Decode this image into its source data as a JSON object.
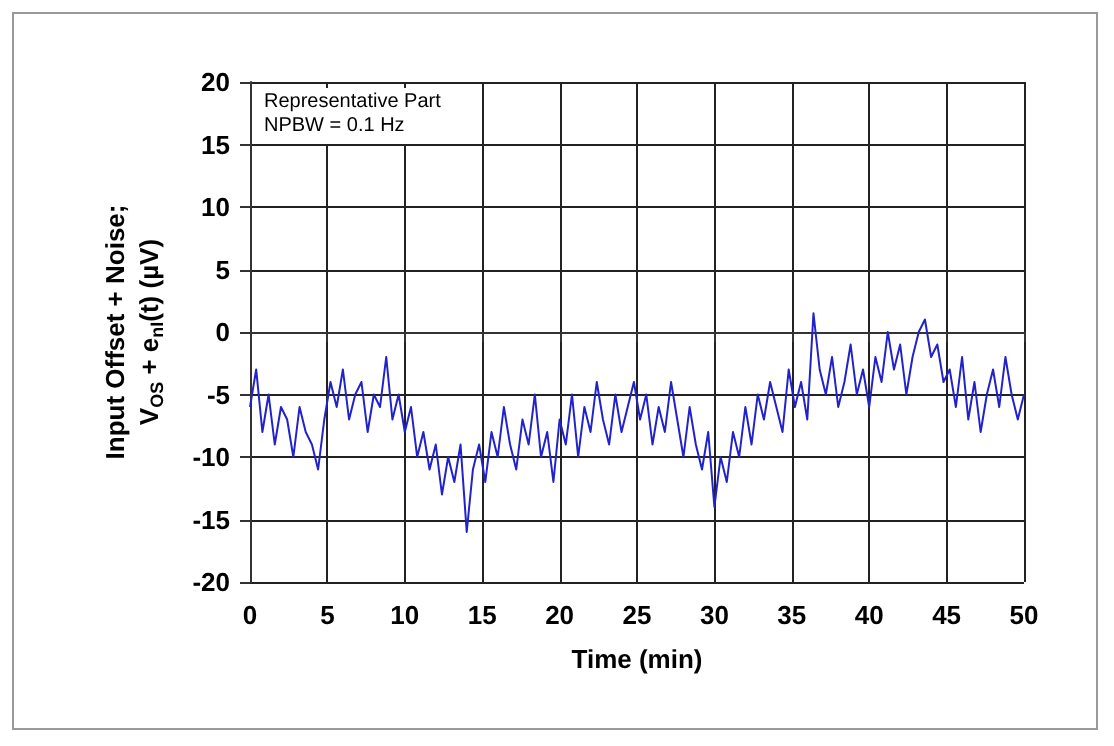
{
  "chart_data": {
    "type": "line",
    "xlabel": "Time (min)",
    "ylabel": "Input Offset + Noise;\nV$_{OS}$ + e$_{nI}$(t) (µV)",
    "annotations": [
      "Representative Part",
      "NPBW = 0.1 Hz"
    ],
    "x": [
      0,
      0.4,
      0.8,
      1.2,
      1.6,
      2,
      2.4,
      2.8,
      3.2,
      3.6,
      4,
      4.4,
      4.8,
      5.2,
      5.6,
      6,
      6.4,
      6.8,
      7.2,
      7.6,
      8,
      8.4,
      8.8,
      9.2,
      9.6,
      10,
      10.4,
      10.8,
      11.2,
      11.6,
      12,
      12.4,
      12.8,
      13.2,
      13.6,
      14,
      14.4,
      14.8,
      15.2,
      15.6,
      16,
      16.4,
      16.8,
      17.2,
      17.6,
      18,
      18.4,
      18.8,
      19.2,
      19.6,
      20,
      20.4,
      20.8,
      21.2,
      21.6,
      22,
      22.4,
      22.8,
      23.2,
      23.6,
      24,
      24.4,
      24.8,
      25.2,
      25.6,
      26,
      26.4,
      26.8,
      27.2,
      27.6,
      28,
      28.4,
      28.8,
      29.2,
      29.6,
      30,
      30.4,
      30.8,
      31.2,
      31.6,
      32,
      32.4,
      32.8,
      33.2,
      33.6,
      34,
      34.4,
      34.8,
      35.2,
      35.6,
      36,
      36.4,
      36.8,
      37.2,
      37.6,
      38,
      38.4,
      38.8,
      39.2,
      39.6,
      40,
      40.4,
      40.8,
      41.2,
      41.6,
      42,
      42.4,
      42.8,
      43.2,
      43.6,
      44,
      44.4,
      44.8,
      45.2,
      45.6,
      46,
      46.4,
      46.8,
      47.2,
      47.6,
      48,
      48.4,
      48.8,
      49.2,
      49.6,
      50
    ],
    "series": [
      {
        "color": "#2222cc",
        "values": [
          -6,
          -3,
          -8,
          -5,
          -9,
          -6,
          -7,
          -10,
          -6,
          -8,
          -9,
          -11,
          -7,
          -4,
          -6,
          -3,
          -7,
          -5,
          -4,
          -8,
          -5,
          -6,
          -2,
          -7,
          -5,
          -8,
          -6,
          -10,
          -8,
          -11,
          -9,
          -13,
          -10,
          -12,
          -9,
          -16,
          -11,
          -9,
          -12,
          -8,
          -10,
          -6,
          -9,
          -11,
          -7,
          -9,
          -5,
          -10,
          -8,
          -12,
          -7,
          -9,
          -5,
          -10,
          -6,
          -8,
          -4,
          -7,
          -9,
          -5,
          -8,
          -6,
          -4,
          -7,
          -5,
          -9,
          -6,
          -8,
          -4,
          -7,
          -10,
          -6,
          -9,
          -11,
          -8,
          -14,
          -10,
          -12,
          -8,
          -10,
          -6,
          -9,
          -5,
          -7,
          -4,
          -6,
          -8,
          -3,
          -6,
          -4,
          -7,
          1.5,
          -3,
          -5,
          -2,
          -6,
          -4,
          -1,
          -5,
          -3,
          -6,
          -2,
          -4,
          0,
          -3,
          -1,
          -5,
          -2,
          0,
          1,
          -2,
          -1,
          -4,
          -3,
          -6,
          -2,
          -7,
          -4,
          -8,
          -5,
          -3,
          -6,
          -2,
          -5,
          -7,
          -5
        ]
      }
    ],
    "xlim": [
      0,
      50
    ],
    "xticks": [
      0,
      5,
      10,
      15,
      20,
      25,
      30,
      35,
      40,
      45,
      50
    ],
    "ylim": [
      -20,
      20
    ],
    "yticks": [
      -20,
      -15,
      -10,
      -5,
      0,
      5,
      10,
      15,
      20
    ],
    "grid": true,
    "marker": "none",
    "line_style": "solid"
  }
}
